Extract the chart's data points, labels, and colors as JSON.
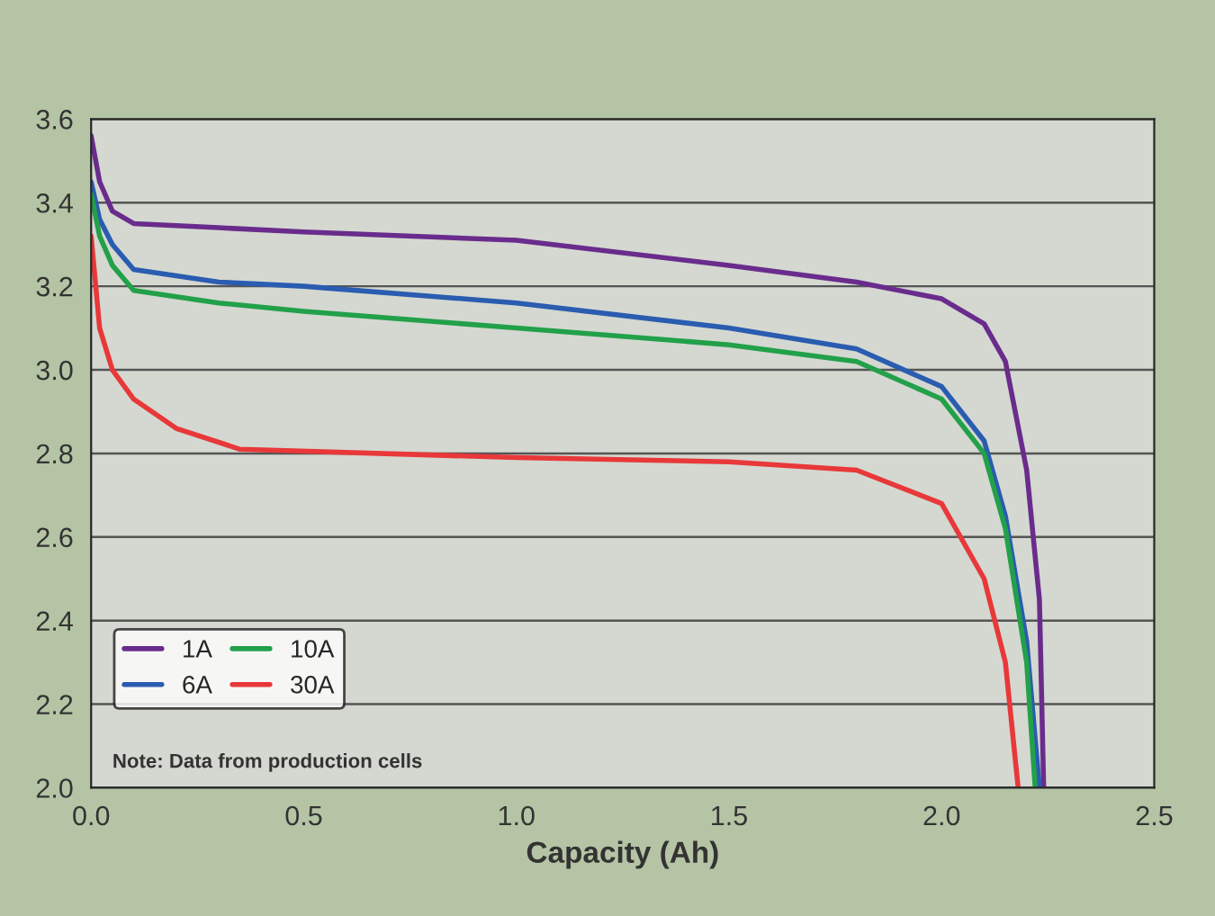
{
  "chart_data": {
    "type": "line",
    "xlabel": "Capacity (Ah)",
    "series": [
      {
        "name": "1A",
        "color": "#6a2c8c",
        "x": [
          0,
          0.02,
          0.05,
          0.1,
          0.3,
          0.5,
          1.0,
          1.5,
          1.8,
          2.0,
          2.1,
          2.15,
          2.2,
          2.23,
          2.24
        ],
        "values": [
          3.56,
          3.45,
          3.38,
          3.35,
          3.34,
          3.33,
          3.31,
          3.25,
          3.21,
          3.17,
          3.11,
          3.02,
          2.76,
          2.45,
          2.0
        ]
      },
      {
        "name": "6A",
        "color": "#2a5cb0",
        "x": [
          0,
          0.02,
          0.05,
          0.1,
          0.3,
          0.5,
          1.0,
          1.5,
          1.8,
          2.0,
          2.1,
          2.15,
          2.2,
          2.23
        ],
        "values": [
          3.45,
          3.36,
          3.3,
          3.24,
          3.21,
          3.2,
          3.16,
          3.1,
          3.05,
          2.96,
          2.83,
          2.65,
          2.35,
          2.0
        ]
      },
      {
        "name": "10A",
        "color": "#22a04a",
        "x": [
          0,
          0.02,
          0.05,
          0.1,
          0.3,
          0.5,
          1.0,
          1.5,
          1.8,
          2.0,
          2.1,
          2.15,
          2.2,
          2.22
        ],
        "values": [
          3.42,
          3.32,
          3.25,
          3.19,
          3.16,
          3.14,
          3.1,
          3.06,
          3.02,
          2.93,
          2.8,
          2.62,
          2.3,
          2.0
        ]
      },
      {
        "name": "30A",
        "color": "#e8383a",
        "x": [
          0,
          0.02,
          0.05,
          0.1,
          0.2,
          0.35,
          1.0,
          1.5,
          1.8,
          2.0,
          2.1,
          2.15,
          2.18
        ],
        "values": [
          3.32,
          3.1,
          3.0,
          2.93,
          2.86,
          2.81,
          2.79,
          2.78,
          2.76,
          2.68,
          2.5,
          2.3,
          2.0
        ]
      }
    ],
    "xlim": [
      0,
      2.5
    ],
    "ylim": [
      2.0,
      3.6
    ],
    "xticks": [
      {
        "value": 0,
        "label": "0.0"
      },
      0.5,
      {
        "value": 1,
        "label": "1.0"
      },
      1.5,
      {
        "value": 2,
        "label": "2.0"
      },
      2.5
    ],
    "yticks": [
      {
        "value": 2,
        "label": "2.0"
      },
      2.2,
      2.4,
      2.6,
      2.8,
      {
        "value": 3,
        "label": "3.0"
      },
      3.2,
      3.4,
      3.6
    ],
    "grid": "y",
    "legend": "bottom left",
    "marker": "none",
    "line_style": "solid",
    "annotations": [
      "Note: Data from production cells"
    ]
  }
}
